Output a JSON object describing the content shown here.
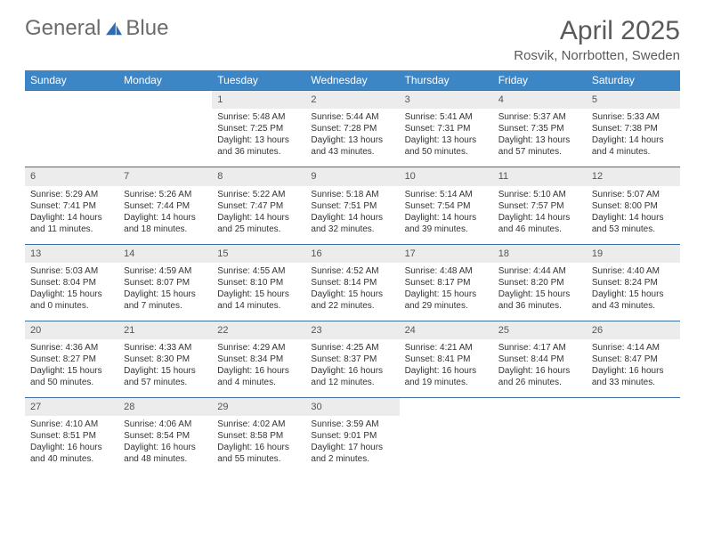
{
  "logo": {
    "text1": "General",
    "text2": "Blue"
  },
  "title": "April 2025",
  "location": "Rosvik, Norrbotten, Sweden",
  "colors": {
    "header_bg": "#3d86c6",
    "header_text": "#ffffff",
    "daynum_bg": "#ececec",
    "rule": "#3d6fa5"
  },
  "weekdays": [
    "Sunday",
    "Monday",
    "Tuesday",
    "Wednesday",
    "Thursday",
    "Friday",
    "Saturday"
  ],
  "weeks": [
    [
      null,
      null,
      {
        "n": "1",
        "sr": "Sunrise: 5:48 AM",
        "ss": "Sunset: 7:25 PM",
        "d1": "Daylight: 13 hours",
        "d2": "and 36 minutes."
      },
      {
        "n": "2",
        "sr": "Sunrise: 5:44 AM",
        "ss": "Sunset: 7:28 PM",
        "d1": "Daylight: 13 hours",
        "d2": "and 43 minutes."
      },
      {
        "n": "3",
        "sr": "Sunrise: 5:41 AM",
        "ss": "Sunset: 7:31 PM",
        "d1": "Daylight: 13 hours",
        "d2": "and 50 minutes."
      },
      {
        "n": "4",
        "sr": "Sunrise: 5:37 AM",
        "ss": "Sunset: 7:35 PM",
        "d1": "Daylight: 13 hours",
        "d2": "and 57 minutes."
      },
      {
        "n": "5",
        "sr": "Sunrise: 5:33 AM",
        "ss": "Sunset: 7:38 PM",
        "d1": "Daylight: 14 hours",
        "d2": "and 4 minutes."
      }
    ],
    [
      {
        "n": "6",
        "sr": "Sunrise: 5:29 AM",
        "ss": "Sunset: 7:41 PM",
        "d1": "Daylight: 14 hours",
        "d2": "and 11 minutes."
      },
      {
        "n": "7",
        "sr": "Sunrise: 5:26 AM",
        "ss": "Sunset: 7:44 PM",
        "d1": "Daylight: 14 hours",
        "d2": "and 18 minutes."
      },
      {
        "n": "8",
        "sr": "Sunrise: 5:22 AM",
        "ss": "Sunset: 7:47 PM",
        "d1": "Daylight: 14 hours",
        "d2": "and 25 minutes."
      },
      {
        "n": "9",
        "sr": "Sunrise: 5:18 AM",
        "ss": "Sunset: 7:51 PM",
        "d1": "Daylight: 14 hours",
        "d2": "and 32 minutes."
      },
      {
        "n": "10",
        "sr": "Sunrise: 5:14 AM",
        "ss": "Sunset: 7:54 PM",
        "d1": "Daylight: 14 hours",
        "d2": "and 39 minutes."
      },
      {
        "n": "11",
        "sr": "Sunrise: 5:10 AM",
        "ss": "Sunset: 7:57 PM",
        "d1": "Daylight: 14 hours",
        "d2": "and 46 minutes."
      },
      {
        "n": "12",
        "sr": "Sunrise: 5:07 AM",
        "ss": "Sunset: 8:00 PM",
        "d1": "Daylight: 14 hours",
        "d2": "and 53 minutes."
      }
    ],
    [
      {
        "n": "13",
        "sr": "Sunrise: 5:03 AM",
        "ss": "Sunset: 8:04 PM",
        "d1": "Daylight: 15 hours",
        "d2": "and 0 minutes."
      },
      {
        "n": "14",
        "sr": "Sunrise: 4:59 AM",
        "ss": "Sunset: 8:07 PM",
        "d1": "Daylight: 15 hours",
        "d2": "and 7 minutes."
      },
      {
        "n": "15",
        "sr": "Sunrise: 4:55 AM",
        "ss": "Sunset: 8:10 PM",
        "d1": "Daylight: 15 hours",
        "d2": "and 14 minutes."
      },
      {
        "n": "16",
        "sr": "Sunrise: 4:52 AM",
        "ss": "Sunset: 8:14 PM",
        "d1": "Daylight: 15 hours",
        "d2": "and 22 minutes."
      },
      {
        "n": "17",
        "sr": "Sunrise: 4:48 AM",
        "ss": "Sunset: 8:17 PM",
        "d1": "Daylight: 15 hours",
        "d2": "and 29 minutes."
      },
      {
        "n": "18",
        "sr": "Sunrise: 4:44 AM",
        "ss": "Sunset: 8:20 PM",
        "d1": "Daylight: 15 hours",
        "d2": "and 36 minutes."
      },
      {
        "n": "19",
        "sr": "Sunrise: 4:40 AM",
        "ss": "Sunset: 8:24 PM",
        "d1": "Daylight: 15 hours",
        "d2": "and 43 minutes."
      }
    ],
    [
      {
        "n": "20",
        "sr": "Sunrise: 4:36 AM",
        "ss": "Sunset: 8:27 PM",
        "d1": "Daylight: 15 hours",
        "d2": "and 50 minutes."
      },
      {
        "n": "21",
        "sr": "Sunrise: 4:33 AM",
        "ss": "Sunset: 8:30 PM",
        "d1": "Daylight: 15 hours",
        "d2": "and 57 minutes."
      },
      {
        "n": "22",
        "sr": "Sunrise: 4:29 AM",
        "ss": "Sunset: 8:34 PM",
        "d1": "Daylight: 16 hours",
        "d2": "and 4 minutes."
      },
      {
        "n": "23",
        "sr": "Sunrise: 4:25 AM",
        "ss": "Sunset: 8:37 PM",
        "d1": "Daylight: 16 hours",
        "d2": "and 12 minutes."
      },
      {
        "n": "24",
        "sr": "Sunrise: 4:21 AM",
        "ss": "Sunset: 8:41 PM",
        "d1": "Daylight: 16 hours",
        "d2": "and 19 minutes."
      },
      {
        "n": "25",
        "sr": "Sunrise: 4:17 AM",
        "ss": "Sunset: 8:44 PM",
        "d1": "Daylight: 16 hours",
        "d2": "and 26 minutes."
      },
      {
        "n": "26",
        "sr": "Sunrise: 4:14 AM",
        "ss": "Sunset: 8:47 PM",
        "d1": "Daylight: 16 hours",
        "d2": "and 33 minutes."
      }
    ],
    [
      {
        "n": "27",
        "sr": "Sunrise: 4:10 AM",
        "ss": "Sunset: 8:51 PM",
        "d1": "Daylight: 16 hours",
        "d2": "and 40 minutes."
      },
      {
        "n": "28",
        "sr": "Sunrise: 4:06 AM",
        "ss": "Sunset: 8:54 PM",
        "d1": "Daylight: 16 hours",
        "d2": "and 48 minutes."
      },
      {
        "n": "29",
        "sr": "Sunrise: 4:02 AM",
        "ss": "Sunset: 8:58 PM",
        "d1": "Daylight: 16 hours",
        "d2": "and 55 minutes."
      },
      {
        "n": "30",
        "sr": "Sunrise: 3:59 AM",
        "ss": "Sunset: 9:01 PM",
        "d1": "Daylight: 17 hours",
        "d2": "and 2 minutes."
      },
      null,
      null,
      null
    ]
  ]
}
